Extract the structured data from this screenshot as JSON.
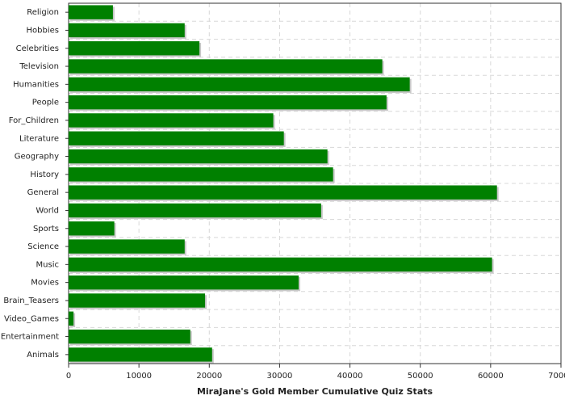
{
  "chart_data": {
    "type": "barh",
    "xlabel": "MiraJane's Gold Member Cumulative Quiz Stats",
    "categories": [
      "Religion",
      "Hobbies",
      "Celebrities",
      "Television",
      "Humanities",
      "People",
      "For_Children",
      "Literature",
      "Geography",
      "History",
      "General",
      "World",
      "Sports",
      "Science",
      "Music",
      "Movies",
      "Brain_Teasers",
      "Video_Games",
      "Entertainment",
      "Animals"
    ],
    "values": [
      6300,
      16500,
      18600,
      44600,
      48500,
      45200,
      29100,
      30600,
      36800,
      37600,
      60900,
      35900,
      6500,
      16500,
      60200,
      32700,
      19400,
      700,
      17300,
      20400
    ],
    "color": "#008000",
    "xlim": [
      0,
      70000
    ],
    "xticks": [
      0,
      10000,
      20000,
      30000,
      40000,
      50000,
      60000,
      70000
    ],
    "grid": true
  }
}
